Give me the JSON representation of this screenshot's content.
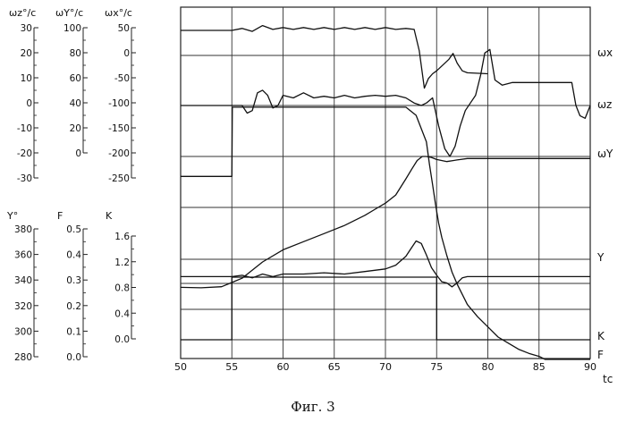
{
  "caption": "Фиг. 3",
  "chart_data": {
    "type": "line",
    "x_axis": {
      "label": "tc",
      "range": [
        50,
        90
      ],
      "ticks": [
        50,
        55,
        60,
        65,
        70,
        75,
        80,
        85,
        90
      ]
    },
    "scales": [
      {
        "name": "ωz°/c",
        "ticks": [
          "30",
          "20",
          "10",
          "0",
          "-10",
          "-20",
          "-30"
        ],
        "range": [
          -30,
          30
        ]
      },
      {
        "name": "ωY°/c",
        "ticks": [
          "100",
          "80",
          "60",
          "40",
          "20",
          "0"
        ],
        "range": [
          0,
          100
        ]
      },
      {
        "name": "ωx°/c",
        "ticks": [
          "50",
          "0",
          "-50",
          "-100",
          "-150",
          "-200",
          "-250"
        ],
        "range": [
          -250,
          50
        ]
      },
      {
        "name": "Y°",
        "ticks": [
          "380",
          "360",
          "340",
          "320",
          "300",
          "280"
        ],
        "range": [
          280,
          380
        ]
      },
      {
        "name": "F",
        "ticks": [
          "0.5",
          "0.4",
          "0.3",
          "0.2",
          "0.1",
          "0.0"
        ],
        "range": [
          0,
          0.5
        ]
      },
      {
        "name": "K",
        "ticks": [
          "1.6",
          "1.2",
          "0.8",
          "0.4",
          "0.0"
        ],
        "range": [
          0,
          1.6
        ]
      }
    ],
    "trace_labels": [
      "ωx",
      "ωz",
      "ωY",
      "Y",
      "K",
      "F"
    ],
    "series": [
      {
        "name": "ωx",
        "x": [
          50,
          55,
          56,
          57,
          58,
          59,
          60,
          61,
          62,
          63,
          64,
          65,
          66,
          67,
          68,
          69,
          70,
          71,
          72,
          72.8,
          73.3,
          73.8,
          74.2,
          74.6,
          75,
          75.6,
          76.2,
          76.6,
          77,
          77.5,
          78,
          80
        ],
        "y": [
          26,
          26,
          28,
          25,
          31,
          27,
          29,
          27,
          29,
          27,
          29,
          27,
          29,
          27,
          29,
          27,
          29,
          27,
          28,
          27,
          5,
          -34,
          -24,
          -19,
          -16,
          -10,
          -4,
          2,
          -8,
          -16,
          -18,
          -19
        ]
      },
      {
        "name": "ωz",
        "x": [
          50,
          55,
          56,
          56.5,
          57,
          57.5,
          58,
          58.5,
          59,
          59.5,
          60,
          61,
          62,
          63,
          64,
          65,
          66,
          67,
          68,
          69,
          70,
          71,
          72,
          72.8,
          73.5,
          74,
          74.6,
          75.2,
          75.8,
          76.3,
          76.8,
          77.3,
          77.8,
          78.3,
          78.8,
          79.3,
          79.7,
          80.2,
          80.7,
          81.4,
          82.4,
          84,
          86,
          88.2,
          88.6,
          89,
          89.5,
          90
        ],
        "y": [
          0,
          0,
          0,
          -1.5,
          -1,
          2.5,
          3,
          2,
          -0.5,
          0,
          2,
          1.5,
          2.5,
          1.5,
          1.8,
          1.5,
          2,
          1.5,
          1.8,
          2,
          1.8,
          2,
          1.5,
          0.5,
          0,
          0.5,
          1.5,
          -4,
          -8.5,
          -10,
          -8,
          -4,
          -1,
          0.5,
          2,
          6,
          10.3,
          11,
          5,
          4,
          4.5,
          4.5,
          4.5,
          4.5,
          0,
          -2,
          -2.5,
          0
        ]
      },
      {
        "name": "ωY",
        "x": [
          50,
          52,
          54,
          56,
          58,
          60,
          62,
          64,
          66,
          68,
          69,
          70,
          71,
          72,
          72.6,
          73.1,
          73.6,
          74,
          74.5,
          75,
          76,
          77,
          78,
          79,
          80,
          82,
          84,
          86,
          88,
          90
        ],
        "y": [
          35.5,
          35.3,
          35.8,
          40,
          48,
          54,
          58,
          62,
          66,
          71,
          74,
          77,
          81,
          89,
          94,
          98,
          100,
          100,
          99.5,
          98.5,
          97.5,
          98.3,
          99,
          99,
          99,
          99,
          99,
          99,
          99,
          99
        ]
      },
      {
        "name": "Y",
        "x": [
          50,
          55,
          56,
          57,
          58,
          59,
          60,
          62,
          64,
          66,
          68,
          70,
          71,
          72,
          72.5,
          73,
          73.5,
          74,
          74.5,
          75,
          75.5,
          76,
          76.5,
          77,
          77.5,
          78,
          79,
          80,
          82,
          84,
          86,
          88,
          90
        ],
        "y": [
          345,
          345,
          346,
          344,
          347,
          345,
          347,
          347,
          348,
          347,
          349,
          351,
          354,
          361,
          367,
          373,
          371,
          362,
          352,
          346,
          341,
          340,
          337,
          340,
          344,
          345,
          345,
          345,
          345,
          345,
          345,
          345,
          345
        ]
      },
      {
        "name": "K",
        "x": [
          50,
          55,
          55.05,
          72,
          73,
          74,
          74.3,
          74.6,
          74.9,
          75.2,
          75.5,
          76,
          76.5,
          77,
          77.5,
          78,
          79,
          80,
          81,
          82,
          83,
          84,
          85,
          85.6,
          86,
          88,
          90
        ],
        "y": [
          0.9,
          0.9,
          1.24,
          1.24,
          1.2,
          1.07,
          0.96,
          0.86,
          0.76,
          0.67,
          0.6,
          0.51,
          0.43,
          0.37,
          0.32,
          0.27,
          0.21,
          0.16,
          0.11,
          0.08,
          0.05,
          0.03,
          0.015,
          0,
          0,
          0,
          0
        ]
      },
      {
        "name": "F",
        "x": [
          50,
          55,
          55,
          75,
          75,
          90
        ],
        "y": [
          0,
          0,
          0.41,
          0.41,
          0,
          0
        ]
      }
    ]
  }
}
